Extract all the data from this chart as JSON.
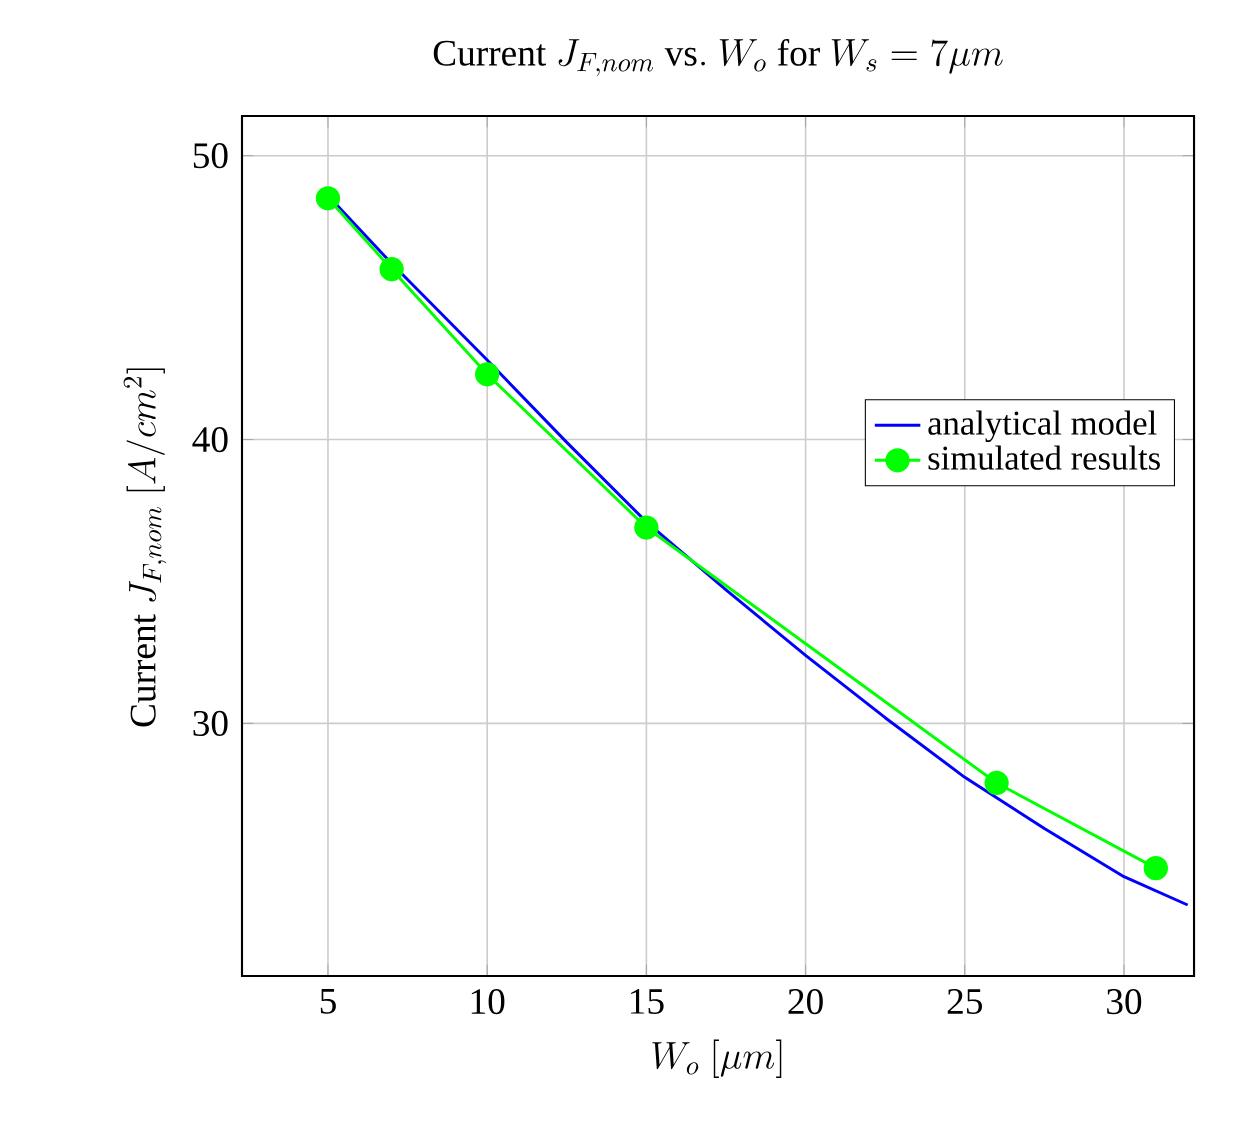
{
  "chart_data": {
    "type": "line",
    "title": "\\mathrm{Current}\\ J_{F,nom}\\ \\mathrm{vs.}\\ W_o\\ \\mathrm{for}\\ W_s = 7\\mu m",
    "xlabel": "W_o\\ [\\mu m]",
    "ylabel": "\\mathrm{Current}\\ J_{F,nom}\\ [A/cm^2]",
    "xlim": [
      2.3,
      32.2
    ],
    "ylim": [
      21.1,
      51.4
    ],
    "xticks": [
      5,
      10,
      15,
      20,
      25,
      30
    ],
    "yticks": [
      30,
      40,
      50
    ],
    "grid": true,
    "legend": "right",
    "series": [
      {
        "name": "analytical model",
        "color": "#0000ff",
        "marker": "none",
        "x": [
          5,
          7,
          10,
          12.5,
          15,
          17.5,
          20,
          22.5,
          25,
          27.5,
          30,
          32
        ],
        "values": [
          48.6,
          46.2,
          42.8,
          39.9,
          37.1,
          34.7,
          32.4,
          30.2,
          28.1,
          26.3,
          24.6,
          23.6
        ]
      },
      {
        "name": "simulated results",
        "color": "#00ff00",
        "marker": "circle",
        "x": [
          5,
          7,
          10,
          15,
          26,
          31
        ],
        "values": [
          48.5,
          46.0,
          42.3,
          36.9,
          27.9,
          24.9
        ]
      }
    ]
  }
}
